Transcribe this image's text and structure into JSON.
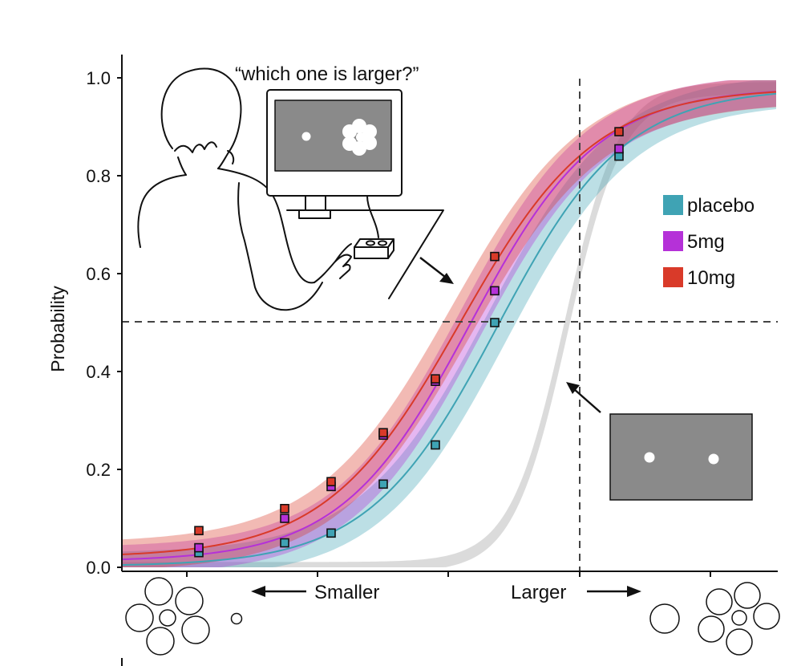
{
  "chart_data": {
    "type": "line",
    "title": "",
    "xlabel": "",
    "ylabel": "Probability",
    "ylim": [
      0,
      1
    ],
    "yticks": [
      "0.0",
      "0.2",
      "0.4",
      "0.6",
      "0.8",
      "1.0"
    ],
    "grid": false,
    "legend_position": "right",
    "x": [
      1,
      2,
      3,
      4,
      5,
      6,
      7
    ],
    "reference_lines": {
      "y": 0.5
    },
    "colors": {
      "placebo": "#3fa3b4",
      "5mg": "#b531d8",
      "10mg": "#d93a29",
      "reference": "#bdbdbd",
      "dashed": "#444444",
      "panel": "#8a8a8a"
    },
    "series": [
      {
        "name": "placebo",
        "values": [
          0.03,
          0.05,
          0.07,
          0.17,
          0.25,
          0.5,
          0.84
        ]
      },
      {
        "name": "5mg",
        "values": [
          0.04,
          0.1,
          0.165,
          0.27,
          0.38,
          0.565,
          0.855
        ]
      },
      {
        "name": "10mg",
        "values": [
          0.075,
          0.12,
          0.175,
          0.275,
          0.385,
          0.635,
          0.89
        ]
      }
    ],
    "legend": [
      "placebo",
      "5mg",
      "10mg"
    ],
    "annotations": {
      "question": "“which one is larger?”",
      "smaller": "Smaller",
      "larger": "Larger"
    }
  }
}
